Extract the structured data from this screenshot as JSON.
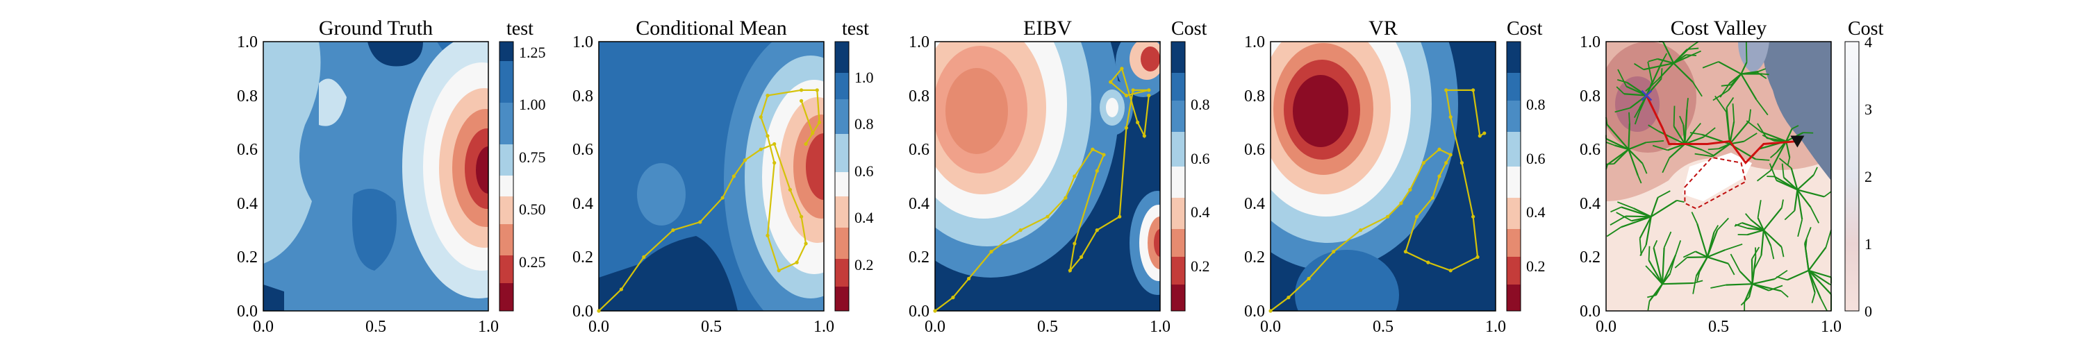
{
  "figure": {
    "panels": [
      {
        "title": "Ground Truth",
        "colorbar_label": "test",
        "colorbar_ticks": [
          "0.25",
          "0.50",
          "0.75",
          "1.00",
          "1.25"
        ],
        "xticks": [
          "0.0",
          "0.5",
          "1.0"
        ],
        "yticks": [
          "0.0",
          "0.2",
          "0.4",
          "0.6",
          "0.8",
          "1.0"
        ]
      },
      {
        "title": "Conditional Mean",
        "colorbar_label": "test",
        "colorbar_ticks": [
          "0.2",
          "0.4",
          "0.6",
          "0.8",
          "1.0"
        ],
        "xticks": [
          "0.0",
          "0.5",
          "1.0"
        ],
        "yticks": [
          "0.0",
          "0.2",
          "0.4",
          "0.6",
          "0.8",
          "1.0"
        ]
      },
      {
        "title": "EIBV",
        "colorbar_label": "Cost",
        "colorbar_ticks": [
          "0.2",
          "0.4",
          "0.6",
          "0.8"
        ],
        "xticks": [
          "0.0",
          "0.5",
          "1.0"
        ],
        "yticks": [
          "0.0",
          "0.2",
          "0.4",
          "0.6",
          "0.8",
          "1.0"
        ]
      },
      {
        "title": "VR",
        "colorbar_label": "Cost",
        "colorbar_ticks": [
          "0.2",
          "0.4",
          "0.6",
          "0.8"
        ],
        "xticks": [
          "0.0",
          "0.5",
          "1.0"
        ],
        "yticks": [
          "0.0",
          "0.2",
          "0.4",
          "0.6",
          "0.8",
          "1.0"
        ]
      },
      {
        "title": "Cost Valley",
        "colorbar_label": "Cost",
        "colorbar_ticks": [
          "0",
          "1",
          "2",
          "3",
          "4"
        ],
        "xticks": [
          "0.0",
          "0.5",
          "1.0"
        ],
        "yticks": [
          "0.0",
          "0.2",
          "0.4",
          "0.6",
          "0.8",
          "1.0"
        ]
      }
    ]
  },
  "chart_data": [
    {
      "type": "heatmap",
      "title": "Ground Truth",
      "xlim": [
        0,
        1
      ],
      "ylim": [
        0,
        1
      ],
      "colorbar": {
        "label": "test",
        "range": [
          0.0,
          1.3
        ],
        "ticks": [
          0.25,
          0.5,
          0.75,
          1.0,
          1.25
        ],
        "colormap": "RdBu"
      },
      "features": [
        {
          "kind": "low_region",
          "center": [
            0.93,
            0.53
          ],
          "description": "dark red minimum near right edge"
        },
        {
          "kind": "high_region",
          "center": [
            0.5,
            0.95
          ],
          "description": "dark blue patches along top"
        }
      ]
    },
    {
      "type": "heatmap",
      "title": "Conditional Mean",
      "xlim": [
        0,
        1
      ],
      "ylim": [
        0,
        1
      ],
      "colorbar": {
        "label": "test",
        "range": [
          0.0,
          1.15
        ],
        "ticks": [
          0.2,
          0.4,
          0.6,
          0.8,
          1.0
        ],
        "colormap": "RdBu"
      },
      "path": {
        "color": "#d4c20a",
        "x": [
          0.0,
          0.1,
          0.2,
          0.33,
          0.45,
          0.55,
          0.6,
          0.65,
          0.72,
          0.78,
          0.85,
          0.9,
          0.92,
          0.88,
          0.8,
          0.75,
          0.78,
          0.75,
          0.72,
          0.75,
          0.9,
          0.97,
          0.98,
          0.92,
          0.95,
          0.9
        ],
        "y": [
          0.0,
          0.08,
          0.2,
          0.3,
          0.33,
          0.42,
          0.5,
          0.56,
          0.6,
          0.62,
          0.45,
          0.35,
          0.25,
          0.18,
          0.15,
          0.28,
          0.55,
          0.65,
          0.72,
          0.8,
          0.82,
          0.82,
          0.7,
          0.62,
          0.66,
          0.78
        ]
      }
    },
    {
      "type": "heatmap",
      "title": "EIBV",
      "xlim": [
        0,
        1
      ],
      "ylim": [
        0,
        1
      ],
      "colorbar": {
        "label": "Cost",
        "range": [
          0.05,
          0.95
        ],
        "ticks": [
          0.2,
          0.4,
          0.6,
          0.8
        ],
        "colormap": "RdBu"
      },
      "path": {
        "color": "#d4c20a",
        "x": [
          0.0,
          0.08,
          0.15,
          0.25,
          0.38,
          0.5,
          0.58,
          0.62,
          0.7,
          0.75,
          0.72,
          0.62,
          0.6,
          0.65,
          0.72,
          0.82,
          0.85,
          0.88,
          0.95,
          0.85,
          0.78,
          0.83,
          0.9,
          0.93,
          0.95
        ],
        "y": [
          0.0,
          0.05,
          0.12,
          0.22,
          0.3,
          0.35,
          0.42,
          0.5,
          0.6,
          0.58,
          0.52,
          0.25,
          0.15,
          0.2,
          0.3,
          0.35,
          0.68,
          0.82,
          0.82,
          0.8,
          0.85,
          0.9,
          0.7,
          0.65,
          0.8
        ]
      }
    },
    {
      "type": "heatmap",
      "title": "VR",
      "xlim": [
        0,
        1
      ],
      "ylim": [
        0,
        1
      ],
      "colorbar": {
        "label": "Cost",
        "range": [
          0.05,
          0.95
        ],
        "ticks": [
          0.2,
          0.4,
          0.6,
          0.8
        ],
        "colormap": "RdBu"
      },
      "path": {
        "color": "#d4c20a",
        "x": [
          0.0,
          0.08,
          0.17,
          0.28,
          0.4,
          0.52,
          0.58,
          0.62,
          0.68,
          0.75,
          0.8,
          0.78,
          0.75,
          0.72,
          0.65,
          0.6,
          0.7,
          0.8,
          0.92,
          0.9,
          0.85,
          0.8,
          0.78,
          0.9,
          0.93,
          0.95
        ],
        "y": [
          0.0,
          0.05,
          0.12,
          0.22,
          0.3,
          0.35,
          0.4,
          0.45,
          0.55,
          0.6,
          0.58,
          0.55,
          0.5,
          0.42,
          0.35,
          0.22,
          0.18,
          0.15,
          0.2,
          0.35,
          0.55,
          0.72,
          0.82,
          0.82,
          0.65,
          0.66
        ]
      }
    },
    {
      "type": "heatmap",
      "title": "Cost Valley",
      "xlim": [
        0,
        1
      ],
      "ylim": [
        0,
        1
      ],
      "colorbar": {
        "label": "Cost",
        "range": [
          0,
          4
        ],
        "ticks": [
          0,
          1,
          2,
          3,
          4
        ],
        "colormap": "Reds-grey"
      },
      "route": {
        "color": "#d01010",
        "x": [
          0.18,
          0.25,
          0.28,
          0.45,
          0.55,
          0.62,
          0.7,
          0.85
        ],
        "y": [
          0.8,
          0.68,
          0.62,
          0.62,
          0.63,
          0.55,
          0.62,
          0.63
        ]
      },
      "start_marker": {
        "symbol": "x",
        "color": "#4040c0",
        "x": 0.18,
        "y": 0.8
      },
      "end_marker": {
        "symbol": "triangle",
        "color": "#111111",
        "x": 0.85,
        "y": 0.63
      },
      "obstacle_polygon": {
        "style": "dashed",
        "color": "#c01010",
        "x": [
          0.35,
          0.47,
          0.6,
          0.62,
          0.4,
          0.35
        ],
        "y": [
          0.46,
          0.57,
          0.55,
          0.48,
          0.38,
          0.4
        ]
      },
      "tree_color": "#1a8a1a"
    }
  ]
}
